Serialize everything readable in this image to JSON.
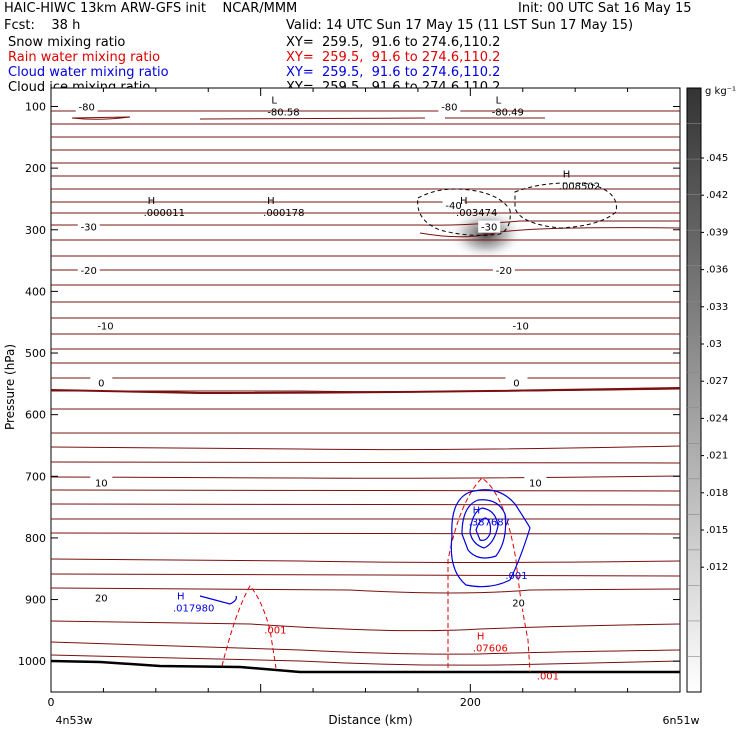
{
  "header": {
    "title": "HAIC-HIWC 13km ARW-GFS init    NCAR/MMM",
    "init": "Init: 00 UTC Sat 16 May 15",
    "fcst": "Fcst:    38 h",
    "valid": "Valid: 14 UTC Sun 17 May 15 (11 LST Sun 17 May 15)",
    "fields": [
      {
        "name": "Snow mixing ratio",
        "xy": "XY=  259.5,  91.6 to 274.6,110.2",
        "color": "#000000"
      },
      {
        "name": "Rain water mixing ratio",
        "xy": "XY=  259.5,  91.6 to 274.6,110.2",
        "color": "#e00000"
      },
      {
        "name": "Cloud water mixing ratio",
        "xy": "XY=  259.5,  91.6 to 274.6,110.2",
        "color": "#0000e0"
      },
      {
        "name": "Cloud ice mixing ratio",
        "xy": "XY=  259.5,  91.6 to 274.6,110.2",
        "color": "#000000"
      }
    ]
  },
  "chart_data": {
    "type": "line",
    "xlabel": "Distance (km)",
    "ylabel": "Pressure (hPa)",
    "xlim": [
      0,
      300
    ],
    "ylim": [
      1050,
      70
    ],
    "x_ticks": [
      0,
      200
    ],
    "x_endpoint_labels": {
      "left": "4n53w",
      "right": "6n51w"
    },
    "y_ticks": [
      100,
      200,
      300,
      400,
      500,
      600,
      700,
      800,
      900,
      1000
    ],
    "colorbar": {
      "unit": "g kg⁻¹",
      "labels": [
        ".045",
        ".042",
        ".039",
        ".036",
        ".033",
        ".03",
        ".027",
        ".024",
        ".021",
        ".018",
        ".015",
        ".012"
      ],
      "color_top": "#333333",
      "color_bottom": "#ffffff"
    },
    "temperature_contour_labels": [
      {
        "text": "-80",
        "x": 17,
        "p": 100
      },
      {
        "text": "-80",
        "x": 190,
        "p": 100
      },
      {
        "text": "-40",
        "x": 192,
        "p": 260
      },
      {
        "text": "-30",
        "x": 18,
        "p": 295
      },
      {
        "text": "-30",
        "x": 209,
        "p": 295
      },
      {
        "text": "-20",
        "x": 18,
        "p": 365
      },
      {
        "text": "-20",
        "x": 216,
        "p": 365
      },
      {
        "text": "-10",
        "x": 26,
        "p": 455
      },
      {
        "text": "-10",
        "x": 224,
        "p": 455
      },
      {
        "text": "0",
        "x": 24,
        "p": 548
      },
      {
        "text": "0",
        "x": 222,
        "p": 548
      },
      {
        "text": "10",
        "x": 24,
        "p": 710
      },
      {
        "text": "10",
        "x": 231,
        "p": 710
      },
      {
        "text": "20",
        "x": 24,
        "p": 897
      },
      {
        "text": "20",
        "x": 223,
        "p": 905
      }
    ],
    "extrema": [
      {
        "kind": "L",
        "value": "-80.58",
        "x": 107,
        "p": 95,
        "color": "#000000"
      },
      {
        "kind": "L",
        "value": "-80.49",
        "x": 214,
        "p": 95,
        "color": "#000000"
      },
      {
        "kind": "H",
        "value": ".000011",
        "x": 48,
        "p": 258,
        "color": "#000000"
      },
      {
        "kind": "H",
        "value": ".000178",
        "x": 105,
        "p": 258,
        "color": "#000000"
      },
      {
        "kind": "H",
        "value": ".003474",
        "x": 197,
        "p": 258,
        "color": "#000000"
      },
      {
        "kind": "H",
        "value": ".008502",
        "x": 246,
        "p": 215,
        "color": "#000000"
      },
      {
        "kind": "H",
        "value": ".387687",
        "x": 203,
        "p": 760,
        "color": "#0000e0"
      },
      {
        "kind": "H",
        "value": ".017980",
        "x": 62,
        "p": 900,
        "color": "#0000e0"
      },
      {
        "kind": "H",
        "value": ".07606",
        "x": 205,
        "p": 965,
        "color": "#e00000"
      }
    ],
    "contour_value_labels": [
      {
        "text": ".001",
        "x": 222,
        "p": 867,
        "color": "#0000e0"
      },
      {
        "text": ".001",
        "x": 107,
        "p": 955,
        "color": "#e00000"
      },
      {
        "text": ".001",
        "x": 237,
        "p": 1030,
        "color": "#e00000"
      }
    ]
  }
}
